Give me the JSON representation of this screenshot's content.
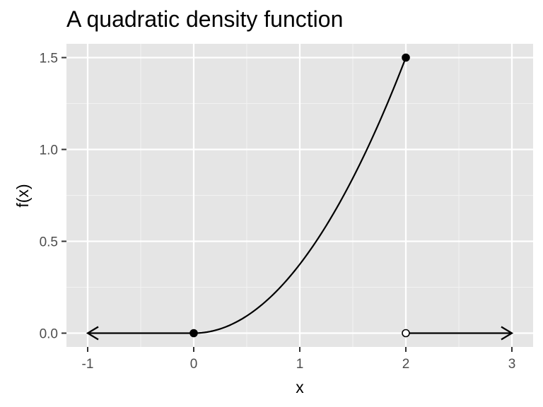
{
  "chart_data": {
    "type": "line",
    "title": "A quadratic density function",
    "xlabel": "x",
    "ylabel": "f(x)",
    "xlim": [
      -1.2,
      3.2
    ],
    "ylim": [
      -0.075,
      1.575
    ],
    "x_ticks": [
      -1,
      0,
      1,
      2,
      3
    ],
    "x_tick_labels": [
      "-1",
      "0",
      "1",
      "2",
      "3"
    ],
    "y_ticks": [
      0.0,
      0.5,
      1.0,
      1.5
    ],
    "y_tick_labels": [
      "0.0",
      "0.5",
      "1.0",
      "1.5"
    ],
    "grid": true,
    "function": "f(x) = 3x^2/8 for 0 <= x <= 2, 0 otherwise",
    "curve": {
      "x": [
        0,
        0.25,
        0.5,
        0.75,
        1.0,
        1.25,
        1.5,
        1.75,
        2.0
      ],
      "y": [
        0,
        0.0234,
        0.0938,
        0.2109,
        0.375,
        0.5859,
        0.8438,
        1.1484,
        1.5
      ]
    },
    "left_segment": {
      "x": [
        -1,
        0
      ],
      "y": [
        0,
        0
      ],
      "arrow": "left"
    },
    "right_segment": {
      "x": [
        2,
        3
      ],
      "y": [
        0,
        0
      ],
      "arrow": "right"
    },
    "points": [
      {
        "x": 0,
        "y": 0,
        "style": "filled"
      },
      {
        "x": 2,
        "y": 1.5,
        "style": "filled"
      },
      {
        "x": 2,
        "y": 0,
        "style": "open"
      }
    ],
    "colors": {
      "panel": "#e5e5e5",
      "grid_major": "#ffffff",
      "grid_minor": "#f2f2f2",
      "line": "#000000",
      "tick": "#333333"
    }
  }
}
